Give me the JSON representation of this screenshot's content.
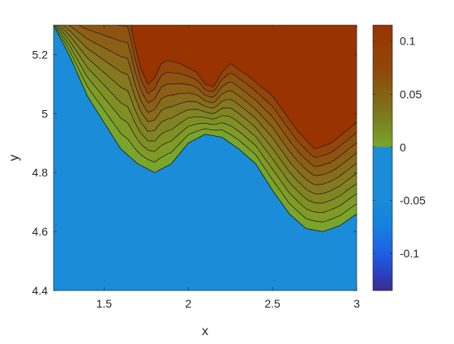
{
  "chart_data": {
    "type": "filled-contour",
    "xlabel": "x",
    "ylabel": "y",
    "xlim": [
      1.2,
      3.0
    ],
    "ylim": [
      4.4,
      5.3
    ],
    "xticks": [
      {
        "value": 1.5,
        "label": "1.5"
      },
      {
        "value": 2.0,
        "label": "2"
      },
      {
        "value": 2.5,
        "label": "2.5"
      },
      {
        "value": 3.0,
        "label": "3"
      }
    ],
    "yticks": [
      {
        "value": 4.4,
        "label": "4.4"
      },
      {
        "value": 4.6,
        "label": "4.6"
      },
      {
        "value": 4.8,
        "label": "4.8"
      },
      {
        "value": 5.0,
        "label": "5"
      },
      {
        "value": 5.2,
        "label": "5.2"
      }
    ],
    "colorbar": {
      "clim": [
        -0.135,
        0.115
      ],
      "ticks": [
        {
          "value": 0.1,
          "label": "0.1"
        },
        {
          "value": 0.05,
          "label": "0.05"
        },
        {
          "value": 0.0,
          "label": "0"
        },
        {
          "value": -0.05,
          "label": "-0.05"
        },
        {
          "value": -0.1,
          "label": "-0.1"
        }
      ],
      "colormap": [
        {
          "value": -0.135,
          "color": "#3b2e84"
        },
        {
          "value": -0.12,
          "color": "#2a3fc0"
        },
        {
          "value": -0.1,
          "color": "#1f5fe3"
        },
        {
          "value": -0.075,
          "color": "#1580df"
        },
        {
          "value": -0.05,
          "color": "#1a8cd8"
        },
        {
          "value": 0.0,
          "color": "#1a8cd8"
        },
        {
          "value": 0.0005,
          "color": "#79a52a"
        },
        {
          "value": 0.03,
          "color": "#7a7a1e"
        },
        {
          "value": 0.07,
          "color": "#8e4a0a"
        },
        {
          "value": 0.115,
          "color": "#993300"
        }
      ]
    },
    "regions": {
      "negative_color": "#1a8cd8",
      "zero_band_color": "#79a52a",
      "max_color": "#993300"
    },
    "zero_contour": [
      [
        1.2,
        5.3
      ],
      [
        1.3,
        5.19
      ],
      [
        1.4,
        5.06
      ],
      [
        1.5,
        4.97
      ],
      [
        1.6,
        4.88
      ],
      [
        1.7,
        4.83
      ],
      [
        1.8,
        4.8
      ],
      [
        1.9,
        4.83
      ],
      [
        2.0,
        4.9
      ],
      [
        2.1,
        4.93
      ],
      [
        2.2,
        4.92
      ],
      [
        2.3,
        4.88
      ],
      [
        2.4,
        4.83
      ],
      [
        2.5,
        4.74
      ],
      [
        2.6,
        4.66
      ],
      [
        2.7,
        4.61
      ],
      [
        2.8,
        4.6
      ],
      [
        2.9,
        4.62
      ],
      [
        3.0,
        4.66
      ]
    ],
    "max_contour": [
      [
        1.66,
        5.3
      ],
      [
        1.68,
        5.24
      ],
      [
        1.72,
        5.15
      ],
      [
        1.76,
        5.1
      ],
      [
        1.8,
        5.12
      ],
      [
        1.84,
        5.17
      ],
      [
        1.88,
        5.18
      ],
      [
        1.95,
        5.17
      ],
      [
        2.05,
        5.14
      ],
      [
        2.1,
        5.1
      ],
      [
        2.15,
        5.09
      ],
      [
        2.2,
        5.14
      ],
      [
        2.25,
        5.17
      ],
      [
        2.35,
        5.13
      ],
      [
        2.5,
        5.06
      ],
      [
        2.65,
        4.94
      ],
      [
        2.75,
        4.88
      ],
      [
        2.85,
        4.9
      ],
      [
        3.0,
        4.97
      ]
    ],
    "contour_levels_count": 8
  }
}
